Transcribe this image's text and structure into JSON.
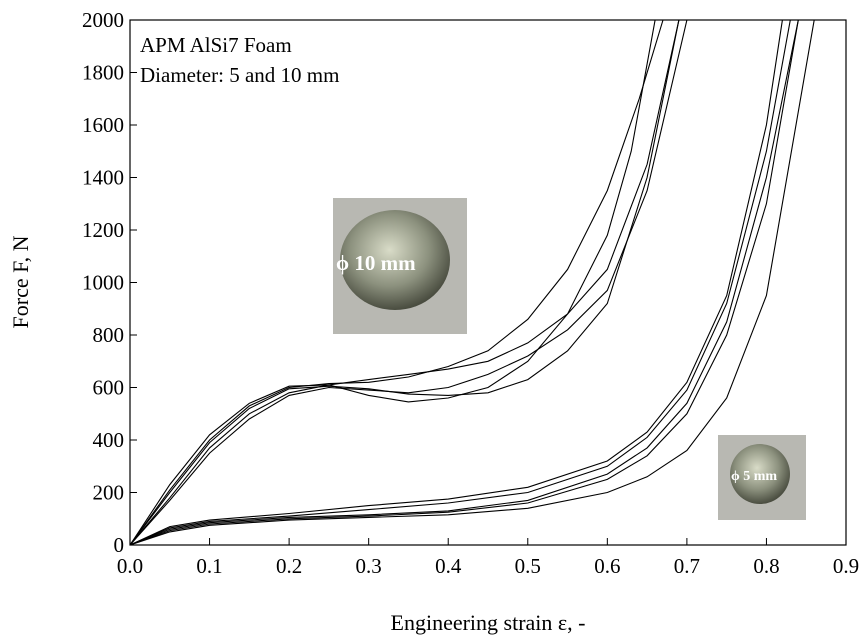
{
  "chart_data": {
    "type": "line",
    "xlabel": "Engineering strain ε, -",
    "ylabel": "Force F, N",
    "annotations": [
      "APM AlSi7 Foam",
      "Diameter: 5 and 10 mm",
      "ϕ 10 mm",
      "ϕ 5 mm"
    ],
    "xlim": [
      0,
      0.9
    ],
    "ylim": [
      0,
      2000
    ],
    "xticks": [
      {
        "value": 0,
        "label": "0.0"
      },
      0.1,
      0.2,
      0.3,
      0.4,
      0.5,
      0.6,
      0.7,
      0.8,
      0.9
    ],
    "yticks": [
      0,
      200,
      400,
      600,
      800,
      1000,
      1200,
      1400,
      1600,
      1800,
      2000
    ],
    "series": [
      {
        "color": "#000000",
        "x": [
          0,
          0.05,
          0.1,
          0.15,
          0.2,
          0.25,
          0.3,
          0.35,
          0.4,
          0.45,
          0.5,
          0.55,
          0.6,
          0.63,
          0.66
        ],
        "values": [
          0,
          230,
          420,
          540,
          605,
          610,
          570,
          545,
          560,
          600,
          700,
          880,
          1180,
          1500,
          2000
        ]
      },
      {
        "color": "#000000",
        "x": [
          0,
          0.05,
          0.1,
          0.15,
          0.2,
          0.25,
          0.3,
          0.35,
          0.4,
          0.45,
          0.5,
          0.55,
          0.6,
          0.64,
          0.67
        ],
        "values": [
          0,
          210,
          400,
          530,
          600,
          615,
          620,
          640,
          680,
          740,
          860,
          1050,
          1350,
          1700,
          2000
        ]
      },
      {
        "color": "#000000",
        "x": [
          0,
          0.05,
          0.1,
          0.15,
          0.2,
          0.25,
          0.3,
          0.35,
          0.4,
          0.45,
          0.5,
          0.55,
          0.6,
          0.65,
          0.69
        ],
        "values": [
          0,
          180,
          370,
          500,
          580,
          610,
          630,
          650,
          670,
          700,
          770,
          880,
          1050,
          1450,
          2000
        ]
      },
      {
        "color": "#000000",
        "x": [
          0,
          0.05,
          0.1,
          0.15,
          0.2,
          0.25,
          0.3,
          0.35,
          0.4,
          0.45,
          0.5,
          0.55,
          0.6,
          0.65,
          0.7
        ],
        "values": [
          0,
          170,
          350,
          480,
          570,
          600,
          590,
          580,
          600,
          650,
          720,
          820,
          970,
          1350,
          2000
        ]
      },
      {
        "color": "#000000",
        "x": [
          0,
          0.05,
          0.1,
          0.15,
          0.2,
          0.25,
          0.3,
          0.35,
          0.4,
          0.45,
          0.5,
          0.55,
          0.6,
          0.65,
          0.69
        ],
        "values": [
          0,
          200,
          390,
          520,
          595,
          605,
          595,
          575,
          570,
          580,
          630,
          740,
          920,
          1400,
          2000
        ]
      },
      {
        "color": "#000000",
        "x": [
          0,
          0.05,
          0.1,
          0.2,
          0.3,
          0.4,
          0.5,
          0.6,
          0.65,
          0.7,
          0.75,
          0.8,
          0.82
        ],
        "values": [
          0,
          70,
          95,
          120,
          150,
          175,
          220,
          320,
          430,
          620,
          950,
          1600,
          2000
        ]
      },
      {
        "color": "#000000",
        "x": [
          0,
          0.05,
          0.1,
          0.2,
          0.3,
          0.4,
          0.5,
          0.6,
          0.65,
          0.7,
          0.75,
          0.8,
          0.83
        ],
        "values": [
          0,
          65,
          90,
          110,
          135,
          160,
          200,
          300,
          410,
          590,
          920,
          1500,
          2000
        ]
      },
      {
        "color": "#000000",
        "x": [
          0,
          0.05,
          0.1,
          0.2,
          0.3,
          0.4,
          0.5,
          0.6,
          0.65,
          0.7,
          0.75,
          0.8,
          0.84
        ],
        "values": [
          0,
          60,
          85,
          105,
          115,
          130,
          170,
          270,
          370,
          540,
          850,
          1400,
          2000
        ]
      },
      {
        "color": "#000000",
        "x": [
          0,
          0.05,
          0.1,
          0.2,
          0.3,
          0.4,
          0.5,
          0.6,
          0.65,
          0.7,
          0.75,
          0.8,
          0.84
        ],
        "values": [
          0,
          55,
          80,
          100,
          110,
          125,
          160,
          250,
          340,
          500,
          800,
          1300,
          2000
        ]
      },
      {
        "color": "#000000",
        "x": [
          0,
          0.05,
          0.1,
          0.2,
          0.3,
          0.4,
          0.5,
          0.6,
          0.65,
          0.7,
          0.75,
          0.8,
          0.86
        ],
        "values": [
          0,
          50,
          75,
          95,
          105,
          115,
          140,
          200,
          260,
          360,
          560,
          950,
          2000
        ]
      }
    ]
  }
}
